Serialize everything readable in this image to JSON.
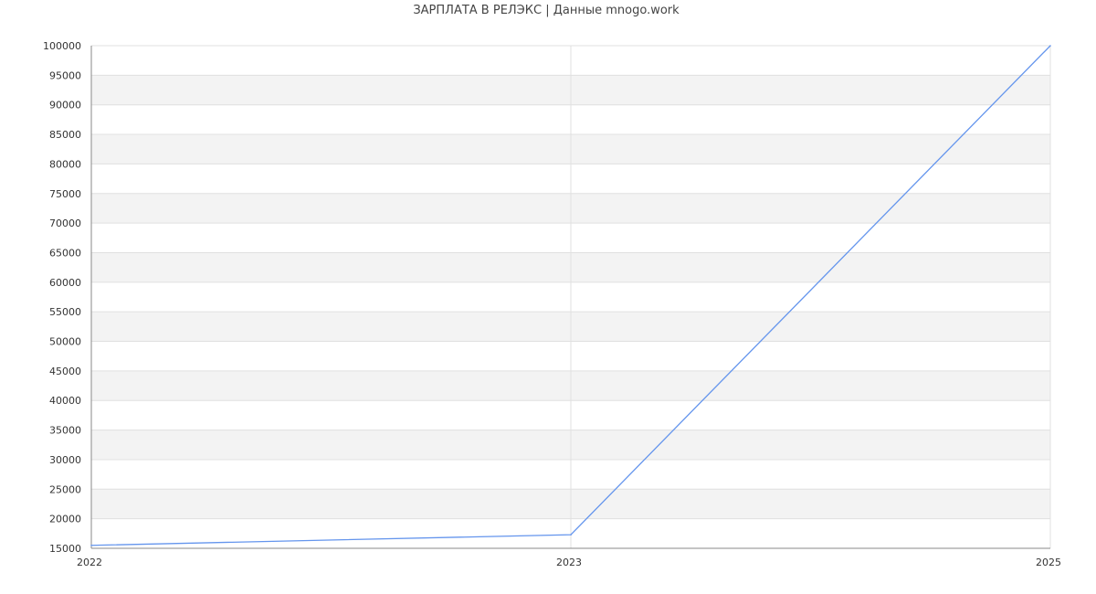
{
  "chart_data": {
    "type": "line",
    "title": "ЗАРПЛАТА В РЕЛЭКС | Данные mnogo.work",
    "categories": [
      "2022",
      "2023",
      "2025"
    ],
    "series": [
      {
        "values": [
          15500,
          17300,
          100000
        ]
      }
    ],
    "ylim": [
      15000,
      100000
    ],
    "ytick_step": 5000,
    "grid": true,
    "xlabel": "",
    "ylabel": "",
    "colors": {
      "line": "#6495ED",
      "band": "#f3f3f3",
      "grid": "#e0e0e0",
      "axis": "#888888"
    }
  }
}
